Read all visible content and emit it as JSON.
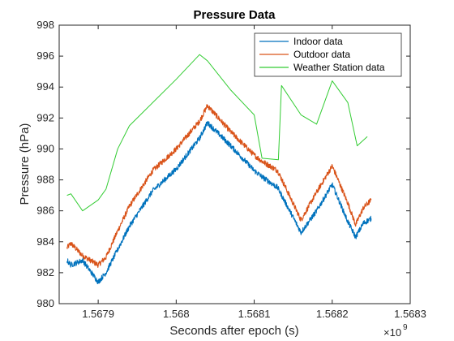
{
  "chart_data": {
    "type": "line",
    "title": "Pressure Data",
    "xlabel": "Seconds after epoch (s)",
    "ylabel": "Pressure (hPa)",
    "x_multiplier_label": "×10",
    "x_multiplier_exponent": "9",
    "xlim": [
      1.56785,
      1.5683
    ],
    "ylim": [
      980,
      998
    ],
    "xticks": [
      1.5679,
      1.568,
      1.5681,
      1.5682,
      1.5683
    ],
    "xtick_labels": [
      "1.5679",
      "1.568",
      "1.5681",
      "1.5682",
      "1.5683"
    ],
    "yticks": [
      980,
      982,
      984,
      986,
      988,
      990,
      992,
      994,
      996,
      998
    ],
    "ytick_labels": [
      "980",
      "982",
      "984",
      "986",
      "988",
      "990",
      "992",
      "994",
      "996",
      "998"
    ],
    "grid": false,
    "legend_position": "top-right",
    "series": [
      {
        "name": "Indoor data",
        "color": "#0072BD",
        "noise": 0.35,
        "x": [
          1.56786,
          1.567865,
          1.56788,
          1.5679,
          1.56791,
          1.567925,
          1.56794,
          1.56797,
          1.568,
          1.56803,
          1.56804,
          1.56807,
          1.5681,
          1.56811,
          1.56813,
          1.56816,
          1.56818,
          1.5682,
          1.56822,
          1.56823,
          1.56824,
          1.56825
        ],
        "y": [
          982.8,
          982.5,
          982.8,
          981.4,
          982.0,
          983.5,
          985.0,
          987.3,
          988.7,
          990.7,
          991.7,
          990.2,
          988.6,
          988.2,
          987.5,
          984.6,
          986.0,
          987.7,
          985.3,
          984.3,
          985.2,
          985.5
        ]
      },
      {
        "name": "Outdoor data",
        "color": "#D95319",
        "noise": 0.35,
        "x": [
          1.56786,
          1.567865,
          1.56788,
          1.5679,
          1.56791,
          1.567925,
          1.56794,
          1.56797,
          1.568,
          1.56803,
          1.56804,
          1.56807,
          1.5681,
          1.56811,
          1.56813,
          1.56816,
          1.56818,
          1.5682,
          1.56822,
          1.56823,
          1.56824,
          1.56825
        ],
        "y": [
          983.6,
          983.9,
          983.1,
          982.5,
          983.0,
          984.7,
          986.3,
          988.6,
          990.0,
          991.8,
          992.8,
          991.1,
          989.6,
          989.2,
          988.6,
          985.4,
          987.2,
          988.9,
          986.5,
          985.1,
          986.2,
          986.7
        ]
      },
      {
        "name": "Weather Station data",
        "color": "#33CC33",
        "noise": 0,
        "x": [
          1.56786,
          1.567865,
          1.56788,
          1.5679,
          1.56791,
          1.567925,
          1.56794,
          1.56797,
          1.568,
          1.56803,
          1.56804,
          1.56807,
          1.5681,
          1.56811,
          1.568131,
          1.568135,
          1.56816,
          1.56818,
          1.5682,
          1.56822,
          1.568232,
          1.568245
        ],
        "y": [
          987.0,
          987.1,
          986.0,
          986.7,
          987.4,
          990.0,
          991.5,
          993.0,
          994.5,
          996.1,
          995.7,
          993.8,
          992.2,
          989.4,
          989.3,
          994.1,
          992.2,
          991.6,
          994.4,
          993.0,
          990.2,
          990.8
        ]
      }
    ]
  }
}
